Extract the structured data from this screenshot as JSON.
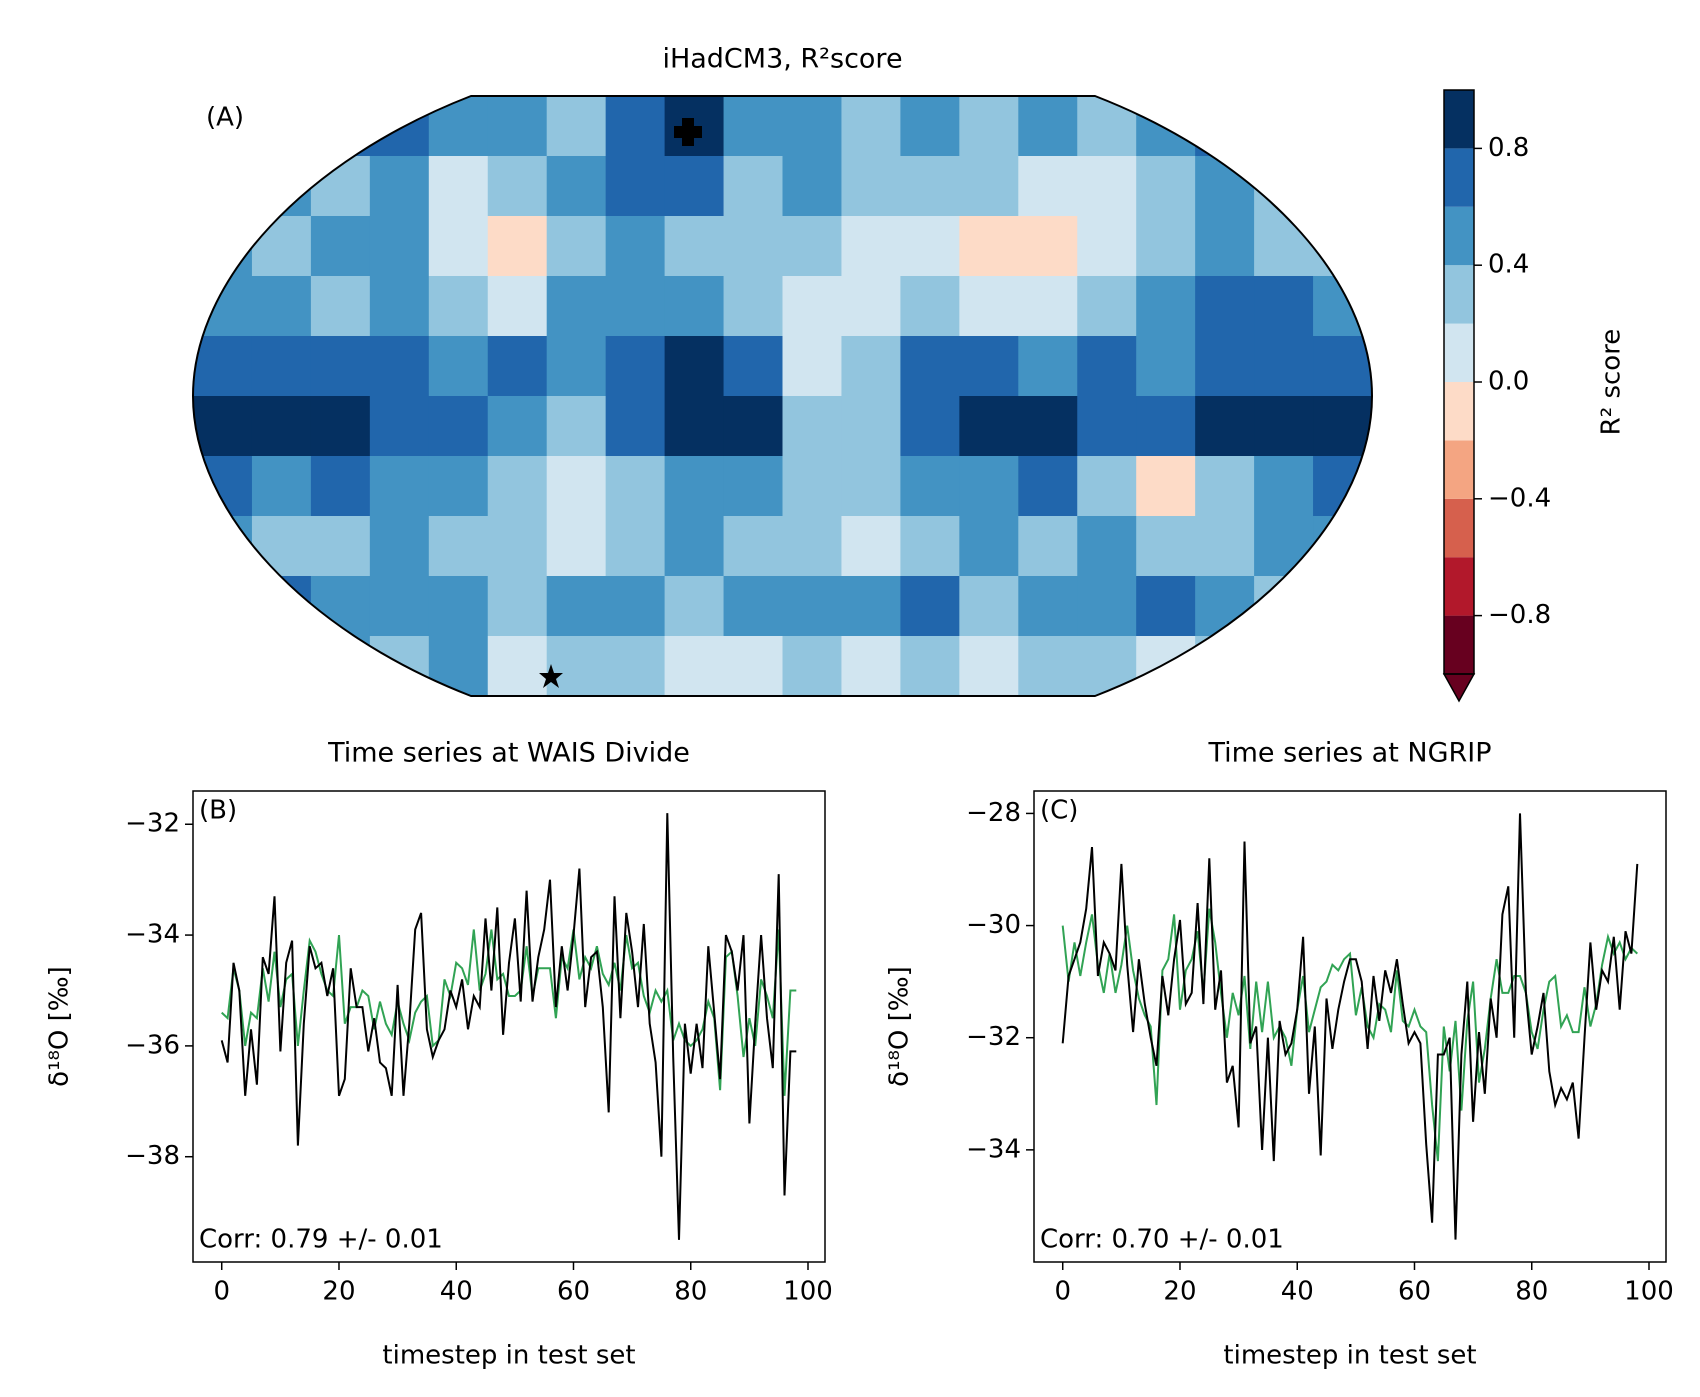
{
  "chart_data": [
    {
      "type": "heatmap",
      "title": "iHadCM3, R²score",
      "annotation": "(A)",
      "colorbar_label": "R² score",
      "clim": [
        -1,
        1
      ],
      "colors": [
        "#67001f",
        "#b2182b",
        "#d6604d",
        "#f4a582",
        "#fddbc7",
        "#d1e5f0",
        "#92c5de",
        "#4393c3",
        "#2166ac",
        "#053061"
      ],
      "cticks": [
        {
          "value": -0.8,
          "label": "−0.8"
        },
        {
          "value": -0.4,
          "label": "−0.4"
        },
        {
          "value": 0,
          "label": "0.0"
        },
        0.4,
        0.8
      ],
      "values": [
        [
          0.5,
          0.5,
          0.6,
          0.7,
          0.5,
          0.5,
          0.3,
          0.7,
          0.9,
          0.5,
          0.5,
          0.3,
          0.5,
          0.3,
          0.5,
          0.3,
          0.5,
          0.7,
          0.5,
          0.5
        ],
        [
          0.5,
          0.5,
          0.3,
          0.5,
          0.1,
          0.3,
          0.5,
          0.7,
          0.7,
          0.3,
          0.5,
          0.3,
          0.3,
          0.3,
          0.1,
          0.1,
          0.3,
          0.5,
          0.3,
          0.5
        ],
        [
          0.5,
          0.3,
          0.5,
          0.5,
          0.1,
          -0.1,
          0.3,
          0.5,
          0.3,
          0.3,
          0.3,
          0.1,
          0.1,
          -0.1,
          -0.1,
          0.1,
          0.3,
          0.5,
          0.3,
          0.3
        ],
        [
          0.5,
          0.5,
          0.3,
          0.5,
          0.3,
          0.1,
          0.5,
          0.5,
          0.5,
          0.3,
          0.1,
          0.1,
          0.3,
          0.1,
          0.1,
          0.3,
          0.5,
          0.7,
          0.7,
          0.5
        ],
        [
          0.7,
          0.7,
          0.7,
          0.7,
          0.5,
          0.7,
          0.5,
          0.7,
          0.9,
          0.7,
          0.1,
          0.3,
          0.7,
          0.7,
          0.5,
          0.7,
          0.5,
          0.7,
          0.7,
          0.7
        ],
        [
          0.9,
          0.9,
          0.9,
          0.7,
          0.7,
          0.5,
          0.3,
          0.7,
          0.9,
          0.9,
          0.3,
          0.3,
          0.7,
          0.9,
          0.9,
          0.7,
          0.7,
          0.9,
          0.9,
          0.9
        ],
        [
          0.7,
          0.5,
          0.7,
          0.5,
          0.5,
          0.3,
          0.1,
          0.3,
          0.5,
          0.5,
          0.3,
          0.3,
          0.5,
          0.5,
          0.7,
          0.3,
          -0.1,
          0.3,
          0.5,
          0.7
        ],
        [
          0.5,
          0.3,
          0.3,
          0.5,
          0.3,
          0.3,
          0.1,
          0.3,
          0.5,
          0.3,
          0.3,
          0.1,
          0.3,
          0.5,
          0.3,
          0.5,
          0.3,
          0.3,
          0.5,
          0.5
        ],
        [
          0.5,
          0.7,
          0.5,
          0.5,
          0.5,
          0.3,
          0.5,
          0.5,
          0.3,
          0.5,
          0.5,
          0.5,
          0.7,
          0.3,
          0.5,
          0.5,
          0.7,
          0.5,
          0.3,
          0.5
        ],
        [
          0.3,
          0.3,
          0.5,
          0.3,
          0.5,
          0.1,
          0.3,
          0.3,
          0.1,
          0.1,
          0.3,
          0.1,
          0.3,
          0.1,
          0.3,
          0.3,
          0.1,
          0.3,
          0.3,
          0.5
        ]
      ]
    },
    {
      "type": "line",
      "title": "Time series at WAIS Divide",
      "annotation": "(B)",
      "corr_text": "Corr: 0.79 +/- 0.01",
      "x_label": "timestep in test set",
      "y_label": "δ¹⁸O [‰]",
      "x": [
        0,
        1,
        2,
        3,
        4,
        5,
        6,
        7,
        8,
        9,
        10,
        11,
        12,
        13,
        14,
        15,
        16,
        17,
        18,
        19,
        20,
        21,
        22,
        23,
        24,
        25,
        26,
        27,
        28,
        29,
        30,
        31,
        32,
        33,
        34,
        35,
        36,
        37,
        38,
        39,
        40,
        41,
        42,
        43,
        44,
        45,
        46,
        47,
        48,
        49,
        50,
        51,
        52,
        53,
        54,
        55,
        56,
        57,
        58,
        59,
        60,
        61,
        62,
        63,
        64,
        65,
        66,
        67,
        68,
        69,
        70,
        71,
        72,
        73,
        74,
        75,
        76,
        77,
        78,
        79,
        80,
        81,
        82,
        83,
        84,
        85,
        86,
        87,
        88,
        89,
        90,
        91,
        92,
        93,
        94,
        95,
        96,
        97,
        98
      ],
      "xlim": [
        -4.9,
        102.9
      ],
      "ylim": [
        -39.9,
        -31.4
      ],
      "xticks": [
        0,
        20,
        40,
        60,
        80,
        100
      ],
      "yticks": [
        {
          "value": -32,
          "label": "−32"
        },
        {
          "value": -34,
          "label": "−34"
        },
        {
          "value": -36,
          "label": "−36"
        },
        {
          "value": -38,
          "label": "−38"
        }
      ],
      "series": [
        {
          "color": "#31a354",
          "values": [
            -35.4,
            -35.5,
            -34.6,
            -35.0,
            -36.0,
            -35.4,
            -35.5,
            -34.6,
            -35.2,
            -34.3,
            -35.3,
            -34.8,
            -34.7,
            -36.0,
            -35.0,
            -34.1,
            -34.3,
            -34.7,
            -35.0,
            -35.1,
            -34.0,
            -35.6,
            -35.3,
            -35.3,
            -35.0,
            -35.1,
            -35.7,
            -35.2,
            -35.6,
            -35.8,
            -35.2,
            -35.6,
            -35.9,
            -35.4,
            -35.2,
            -35.1,
            -36.0,
            -35.9,
            -34.8,
            -35.1,
            -34.5,
            -34.6,
            -34.9,
            -33.9,
            -35.0,
            -34.7,
            -33.9,
            -34.8,
            -34.7,
            -35.1,
            -35.1,
            -35.0,
            -34.2,
            -35.1,
            -34.6,
            -34.6,
            -34.6,
            -35.5,
            -34.4,
            -34.6,
            -33.9,
            -34.8,
            -34.4,
            -34.6,
            -34.2,
            -34.7,
            -34.9,
            -34.5,
            -35.0,
            -34.0,
            -34.6,
            -34.5,
            -35.1,
            -35.4,
            -35.0,
            -35.2,
            -35.0,
            -35.9,
            -35.6,
            -35.9,
            -36.0,
            -35.9,
            -35.7,
            -35.2,
            -35.5,
            -36.8,
            -34.4,
            -34.3,
            -35.1,
            -36.2,
            -35.5,
            -36.0,
            -34.8,
            -35.1,
            -35.5,
            -33.9,
            -36.9,
            -35.0,
            -35.0
          ]
        },
        {
          "color": "#000000",
          "values": [
            -35.9,
            -36.3,
            -34.5,
            -35.0,
            -36.9,
            -35.7,
            -36.7,
            -34.4,
            -34.7,
            -33.3,
            -36.1,
            -34.5,
            -34.1,
            -37.8,
            -35.6,
            -34.2,
            -34.6,
            -34.5,
            -35.1,
            -34.6,
            -36.9,
            -36.6,
            -34.6,
            -35.3,
            -35.3,
            -36.1,
            -35.5,
            -36.3,
            -36.4,
            -36.9,
            -34.9,
            -36.9,
            -35.6,
            -33.9,
            -33.6,
            -35.7,
            -36.2,
            -35.9,
            -35.7,
            -35.0,
            -35.3,
            -34.8,
            -35.7,
            -35.1,
            -35.3,
            -33.7,
            -35.0,
            -33.5,
            -35.8,
            -34.5,
            -33.7,
            -35.2,
            -33.2,
            -35.2,
            -34.4,
            -33.9,
            -33.0,
            -35.3,
            -34.2,
            -35.0,
            -34.0,
            -32.8,
            -35.3,
            -34.4,
            -34.3,
            -35.3,
            -37.2,
            -33.3,
            -35.5,
            -33.6,
            -34.3,
            -35.3,
            -33.8,
            -35.6,
            -36.3,
            -38.0,
            -31.8,
            -36.2,
            -39.5,
            -35.6,
            -36.5,
            -35.6,
            -36.4,
            -34.2,
            -35.4,
            -36.6,
            -34.0,
            -34.3,
            -35.0,
            -34.0,
            -37.4,
            -35.6,
            -34.0,
            -35.5,
            -36.4,
            -32.9,
            -38.7,
            -36.1,
            -36.1
          ]
        }
      ]
    },
    {
      "type": "line",
      "title": "Time series at NGRIP",
      "annotation": "(C)",
      "corr_text": "Corr: 0.70 +/- 0.01",
      "x_label": "timestep in test set",
      "y_label": "δ¹⁸O [‰]",
      "x": [
        0,
        1,
        2,
        3,
        4,
        5,
        6,
        7,
        8,
        9,
        10,
        11,
        12,
        13,
        14,
        15,
        16,
        17,
        18,
        19,
        20,
        21,
        22,
        23,
        24,
        25,
        26,
        27,
        28,
        29,
        30,
        31,
        32,
        33,
        34,
        35,
        36,
        37,
        38,
        39,
        40,
        41,
        42,
        43,
        44,
        45,
        46,
        47,
        48,
        49,
        50,
        51,
        52,
        53,
        54,
        55,
        56,
        57,
        58,
        59,
        60,
        61,
        62,
        63,
        64,
        65,
        66,
        67,
        68,
        69,
        70,
        71,
        72,
        73,
        74,
        75,
        76,
        77,
        78,
        79,
        80,
        81,
        82,
        83,
        84,
        85,
        86,
        87,
        88,
        89,
        90,
        91,
        92,
        93,
        94,
        95,
        96,
        97,
        98
      ],
      "xlim": [
        -4.9,
        102.9
      ],
      "ylim": [
        -36.0,
        -27.6
      ],
      "xticks": [
        0,
        20,
        40,
        60,
        80,
        100
      ],
      "yticks": [
        {
          "value": -28,
          "label": "−28"
        },
        {
          "value": -30,
          "label": "−30"
        },
        {
          "value": -32,
          "label": "−32"
        },
        {
          "value": -34,
          "label": "−34"
        }
      ],
      "series": [
        {
          "color": "#31a354",
          "values": [
            -30.0,
            -31.0,
            -30.3,
            -30.9,
            -30.3,
            -29.8,
            -30.7,
            -31.2,
            -30.5,
            -31.2,
            -30.7,
            -30.0,
            -30.8,
            -31.3,
            -31.6,
            -31.8,
            -33.2,
            -30.8,
            -30.6,
            -29.8,
            -31.5,
            -30.8,
            -30.6,
            -30.1,
            -31.2,
            -29.7,
            -30.3,
            -31.2,
            -32.0,
            -31.2,
            -31.6,
            -30.9,
            -32.2,
            -31.0,
            -31.9,
            -31.0,
            -32.0,
            -31.8,
            -32.0,
            -32.5,
            -31.5,
            -30.9,
            -31.9,
            -31.5,
            -31.1,
            -31.0,
            -30.7,
            -30.8,
            -30.6,
            -30.5,
            -31.6,
            -31.1,
            -31.8,
            -32.0,
            -31.4,
            -31.5,
            -31.9,
            -30.8,
            -31.7,
            -31.8,
            -31.5,
            -31.8,
            -31.9,
            -33.2,
            -34.2,
            -31.8,
            -32.6,
            -31.7,
            -33.3,
            -31.7,
            -31.0,
            -32.8,
            -32.2,
            -31.3,
            -30.6,
            -31.2,
            -31.2,
            -30.9,
            -30.9,
            -31.2,
            -31.9,
            -32.2,
            -31.5,
            -31.0,
            -30.9,
            -31.8,
            -31.6,
            -31.9,
            -31.9,
            -31.1,
            -31.8,
            -31.4,
            -30.7,
            -30.2,
            -30.5,
            -30.3,
            -30.6,
            -30.4,
            -30.5
          ]
        },
        {
          "color": "#000000",
          "values": [
            -32.1,
            -30.9,
            -30.6,
            -30.3,
            -29.7,
            -28.6,
            -30.9,
            -30.3,
            -30.5,
            -30.8,
            -28.9,
            -30.7,
            -31.9,
            -30.6,
            -31.4,
            -32.0,
            -32.5,
            -30.9,
            -31.6,
            -30.6,
            -29.9,
            -31.4,
            -31.2,
            -29.6,
            -31.4,
            -28.8,
            -31.5,
            -30.8,
            -32.8,
            -32.5,
            -33.6,
            -28.5,
            -32.1,
            -31.8,
            -34.0,
            -32.0,
            -34.2,
            -31.7,
            -32.3,
            -32.1,
            -31.5,
            -30.2,
            -33.0,
            -31.8,
            -34.1,
            -31.3,
            -32.2,
            -31.5,
            -31.0,
            -30.6,
            -30.6,
            -31.0,
            -32.2,
            -30.9,
            -31.7,
            -30.8,
            -31.2,
            -30.6,
            -31.4,
            -32.1,
            -31.9,
            -32.1,
            -33.9,
            -35.3,
            -32.3,
            -32.3,
            -32.0,
            -35.6,
            -32.3,
            -31.0,
            -33.5,
            -31.9,
            -33.0,
            -31.3,
            -32.0,
            -29.8,
            -29.3,
            -32.0,
            -28.0,
            -31.2,
            -32.3,
            -31.8,
            -31.2,
            -32.6,
            -33.2,
            -32.9,
            -33.1,
            -32.8,
            -33.8,
            -32.0,
            -30.3,
            -31.5,
            -30.8,
            -31.0,
            -30.2,
            -31.5,
            -30.1,
            -30.5,
            -28.9
          ]
        }
      ]
    }
  ]
}
